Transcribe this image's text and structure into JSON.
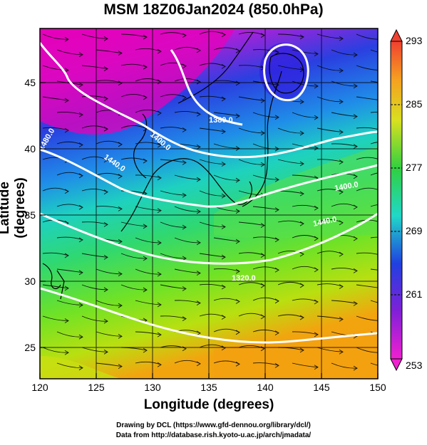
{
  "title": "MSM 18Z06Jan2024 (850.0hPa)",
  "xlabel": "Longitude (degrees)",
  "ylabel": "Latitude  (degrees)",
  "x_ticks": [
    "120",
    "125",
    "130",
    "135",
    "140",
    "145",
    "150"
  ],
  "y_ticks": [
    "25",
    "30",
    "35",
    "40",
    "45"
  ],
  "colorbar": {
    "labels": [
      "293",
      "285",
      "277",
      "269",
      "261",
      "253"
    ],
    "min": 253,
    "max": 293
  },
  "contours": [
    {
      "label": "1320.0"
    },
    {
      "label": "1380.0"
    },
    {
      "label": "1400.0"
    },
    {
      "label": "1400.0"
    },
    {
      "label": "1440.0"
    },
    {
      "label": "1440.0"
    },
    {
      "label": "1480.0"
    }
  ],
  "credits": {
    "line1": "Drawing by DCL (https://www.gfd-dennou.org/library/dcl/)",
    "line2": "Data from http://database.rish.kyoto-u.ac.jp/arch/jmadata/"
  },
  "colors": {
    "cold": "#d500b8",
    "cool": "#1a3fd6",
    "mid": "#16c9b8",
    "warm": "#7de22a",
    "hot": "#f2a40f",
    "contour": "#ffffff",
    "coast": "#000000"
  }
}
